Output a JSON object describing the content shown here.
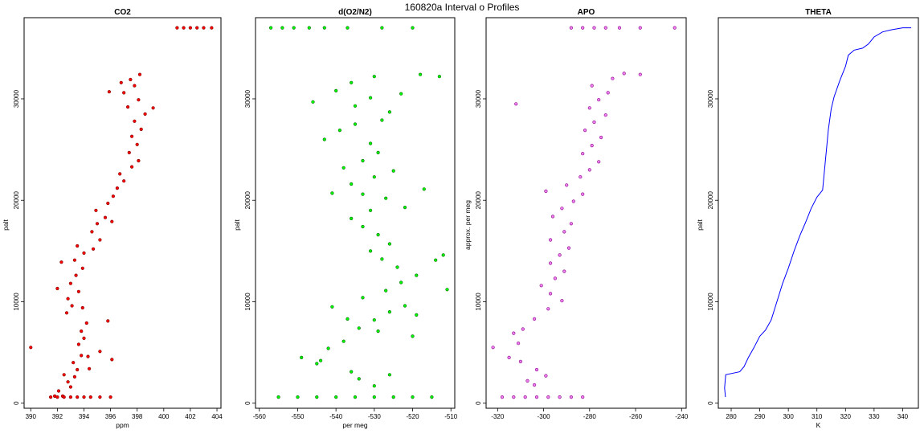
{
  "figure": {
    "title": "160820a   Interval o Profiles"
  },
  "chart_data": [
    {
      "type": "scatter",
      "title": "CO2",
      "xlabel": "ppm",
      "ylabel": "palt",
      "xlim": [
        389.5,
        404.3
      ],
      "ylim": [
        -500,
        38000
      ],
      "xticks": [
        390,
        392,
        394,
        396,
        398,
        400,
        402,
        404
      ],
      "yticks": [
        0,
        10000,
        20000,
        30000
      ],
      "colors": {
        "fill": "#ff0000",
        "edge": "#7a0000"
      },
      "points": [
        [
          390,
          5500
        ],
        [
          391.8,
          700
        ],
        [
          392.1,
          1200
        ],
        [
          392.4,
          700
        ],
        [
          392.8,
          2100
        ],
        [
          393.0,
          1600
        ],
        [
          393.3,
          2600
        ],
        [
          393.5,
          3300
        ],
        [
          393.2,
          4000
        ],
        [
          393.8,
          4700
        ],
        [
          394.3,
          4600
        ],
        [
          393.6,
          5800
        ],
        [
          394.0,
          6400
        ],
        [
          393.8,
          7100
        ],
        [
          394.2,
          7900
        ],
        [
          395.8,
          8100
        ],
        [
          392.7,
          8900
        ],
        [
          393.1,
          9600
        ],
        [
          392.8,
          10300
        ],
        [
          393.6,
          11000
        ],
        [
          393.0,
          11800
        ],
        [
          393.4,
          12600
        ],
        [
          393.9,
          13300
        ],
        [
          393.3,
          14100
        ],
        [
          394.0,
          14800
        ],
        [
          393.5,
          15500
        ],
        [
          394.7,
          15200
        ],
        [
          395.2,
          16100
        ],
        [
          394.6,
          16900
        ],
        [
          395.0,
          17700
        ],
        [
          395.6,
          18300
        ],
        [
          394.9,
          19000
        ],
        [
          395.8,
          19700
        ],
        [
          396.2,
          20400
        ],
        [
          396.5,
          21200
        ],
        [
          397.0,
          21900
        ],
        [
          396.7,
          22600
        ],
        [
          397.6,
          23300
        ],
        [
          398.1,
          23900
        ],
        [
          397.4,
          24700
        ],
        [
          398.0,
          25500
        ],
        [
          397.6,
          26300
        ],
        [
          398.3,
          27000
        ],
        [
          397.8,
          27800
        ],
        [
          398.6,
          28500
        ],
        [
          397.3,
          29200
        ],
        [
          398.1,
          29900
        ],
        [
          397.0,
          30600
        ],
        [
          397.8,
          31300
        ],
        [
          397.5,
          31900
        ],
        [
          398.2,
          32400
        ],
        [
          396.8,
          31600
        ],
        [
          395.9,
          30700
        ],
        [
          399.2,
          29100
        ],
        [
          396.1,
          17900
        ],
        [
          392.3,
          13900
        ],
        [
          392.0,
          11300
        ],
        [
          393.9,
          9400
        ],
        [
          395.2,
          5100
        ],
        [
          396.1,
          4300
        ],
        [
          394.4,
          3400
        ],
        [
          392.5,
          2800
        ],
        [
          391.5,
          600
        ],
        [
          392.0,
          600
        ],
        [
          392.5,
          600
        ],
        [
          393.0,
          600
        ],
        [
          393.5,
          600
        ],
        [
          394.0,
          600
        ],
        [
          394.5,
          600
        ],
        [
          395.2,
          600
        ],
        [
          396.0,
          600
        ],
        [
          401.0,
          37000
        ],
        [
          401.5,
          37000
        ],
        [
          402.0,
          37000
        ],
        [
          402.5,
          37000
        ],
        [
          403.0,
          37000
        ],
        [
          403.6,
          37000
        ]
      ]
    },
    {
      "type": "scatter",
      "title": "d(O2/N2)",
      "xlabel": "per meg",
      "ylabel": "palt",
      "xlim": [
        -561,
        -509
      ],
      "ylim": [
        -500,
        38000
      ],
      "xticks": [
        -560,
        -550,
        -540,
        -530,
        -520,
        -510
      ],
      "yticks": [
        0,
        10000,
        20000,
        30000
      ],
      "colors": {
        "fill": "#00ff00",
        "edge": "#006400"
      },
      "points": [
        [
          -549,
          4500
        ],
        [
          -545,
          3900
        ],
        [
          -542,
          5400
        ],
        [
          -538,
          6100
        ],
        [
          -534,
          7400
        ],
        [
          -530,
          8200
        ],
        [
          -526,
          9000
        ],
        [
          -522,
          9600
        ],
        [
          -519,
          8700
        ],
        [
          -529,
          7100
        ],
        [
          -537,
          8300
        ],
        [
          -541,
          9500
        ],
        [
          -533,
          10400
        ],
        [
          -527,
          11100
        ],
        [
          -523,
          11900
        ],
        [
          -519,
          12600
        ],
        [
          -524,
          13400
        ],
        [
          -528,
          14200
        ],
        [
          -514,
          14100
        ],
        [
          -531,
          15000
        ],
        [
          -526,
          15700
        ],
        [
          -529,
          16600
        ],
        [
          -533,
          17400
        ],
        [
          -536,
          18200
        ],
        [
          -531,
          19000
        ],
        [
          -522,
          19300
        ],
        [
          -527,
          20200
        ],
        [
          -533,
          20600
        ],
        [
          -541,
          20700
        ],
        [
          -536,
          21600
        ],
        [
          -530,
          22300
        ],
        [
          -525,
          22900
        ],
        [
          -538,
          23200
        ],
        [
          -533,
          23900
        ],
        [
          -529,
          24700
        ],
        [
          -531,
          25600
        ],
        [
          -543,
          26000
        ],
        [
          -539,
          26900
        ],
        [
          -535,
          27500
        ],
        [
          -528,
          27900
        ],
        [
          -526,
          28700
        ],
        [
          -535,
          29300
        ],
        [
          -531,
          30100
        ],
        [
          -523,
          30500
        ],
        [
          -540,
          30800
        ],
        [
          -536,
          31600
        ],
        [
          -530,
          32200
        ],
        [
          -518,
          32400
        ],
        [
          -513,
          32200
        ],
        [
          -546,
          29700
        ],
        [
          -517,
          21100
        ],
        [
          -512,
          14600
        ],
        [
          -511,
          11200
        ],
        [
          -520,
          6600
        ],
        [
          -534,
          2400
        ],
        [
          -530,
          1700
        ],
        [
          -526,
          2800
        ],
        [
          -536,
          3100
        ],
        [
          -544,
          4200
        ],
        [
          -555,
          600
        ],
        [
          -550,
          600
        ],
        [
          -545,
          600
        ],
        [
          -540,
          600
        ],
        [
          -535,
          600
        ],
        [
          -530,
          600
        ],
        [
          -525,
          600
        ],
        [
          -520,
          600
        ],
        [
          -515,
          600
        ],
        [
          -557,
          37000
        ],
        [
          -554,
          37000
        ],
        [
          -551,
          37000
        ],
        [
          -547,
          37000
        ],
        [
          -543,
          37000
        ],
        [
          -537,
          37000
        ],
        [
          -528,
          37000
        ],
        [
          -520,
          37000
        ]
      ]
    },
    {
      "type": "scatter",
      "title": "APO",
      "xlabel": "",
      "ylabel": "approx. per meg",
      "xlim": [
        -325,
        -238
      ],
      "ylim": [
        -500,
        38000
      ],
      "xticks": [
        -320,
        -300,
        -280,
        -260,
        -240
      ],
      "yticks": [
        0,
        10000,
        20000,
        30000
      ],
      "colors": {
        "fill": "#ee82ee",
        "edge": "#8b008b"
      },
      "points": [
        [
          -322,
          5500
        ],
        [
          -315,
          4500
        ],
        [
          -311,
          5900
        ],
        [
          -309,
          7300
        ],
        [
          -304,
          8300
        ],
        [
          -298,
          9300
        ],
        [
          -292,
          10100
        ],
        [
          -297,
          10800
        ],
        [
          -301,
          11600
        ],
        [
          -295,
          12300
        ],
        [
          -291,
          13000
        ],
        [
          -297,
          13800
        ],
        [
          -293,
          14600
        ],
        [
          -289,
          15300
        ],
        [
          -297,
          16100
        ],
        [
          -291,
          16900
        ],
        [
          -288,
          17700
        ],
        [
          -296,
          18400
        ],
        [
          -292,
          19200
        ],
        [
          -287,
          19900
        ],
        [
          -283,
          20600
        ],
        [
          -299,
          20900
        ],
        [
          -290,
          21500
        ],
        [
          -284,
          22300
        ],
        [
          -280,
          23000
        ],
        [
          -276,
          23800
        ],
        [
          -283,
          24600
        ],
        [
          -279,
          25400
        ],
        [
          -275,
          26200
        ],
        [
          -282,
          26900
        ],
        [
          -278,
          27700
        ],
        [
          -273,
          28400
        ],
        [
          -280,
          29100
        ],
        [
          -276,
          29900
        ],
        [
          -272,
          30600
        ],
        [
          -279,
          31300
        ],
        [
          -270,
          32000
        ],
        [
          -265,
          32500
        ],
        [
          -258,
          32400
        ],
        [
          -312,
          29500
        ],
        [
          -303,
          3300
        ],
        [
          -299,
          2700
        ],
        [
          -304,
          1800
        ],
        [
          -307,
          2200
        ],
        [
          -310,
          4100
        ],
        [
          -313,
          6900
        ],
        [
          -318,
          600
        ],
        [
          -313,
          600
        ],
        [
          -308,
          600
        ],
        [
          -303,
          600
        ],
        [
          -298,
          600
        ],
        [
          -293,
          600
        ],
        [
          -288,
          600
        ],
        [
          -283,
          600
        ],
        [
          -288,
          37000
        ],
        [
          -283,
          37000
        ],
        [
          -278,
          37000
        ],
        [
          -273,
          37000
        ],
        [
          -267,
          37000
        ],
        [
          -258,
          37000
        ],
        [
          -243,
          37000
        ]
      ]
    },
    {
      "type": "line",
      "title": "THETA",
      "xlabel": "K",
      "ylabel": "palt",
      "xlim": [
        275.5,
        345.5
      ],
      "ylim": [
        -500,
        38000
      ],
      "xticks": [
        280,
        290,
        300,
        310,
        320,
        330,
        340
      ],
      "yticks": [
        0,
        10000,
        20000,
        30000
      ],
      "colors": {
        "line": "#0000ff"
      },
      "points": [
        [
          278.0,
          600
        ],
        [
          277.7,
          1500
        ],
        [
          278.1,
          2800
        ],
        [
          283,
          3100
        ],
        [
          284.5,
          3600
        ],
        [
          286,
          4500
        ],
        [
          288,
          5500
        ],
        [
          290,
          6600
        ],
        [
          292,
          7200
        ],
        [
          294,
          8200
        ],
        [
          296,
          10000
        ],
        [
          298,
          11800
        ],
        [
          300,
          13300
        ],
        [
          302,
          15000
        ],
        [
          304,
          16500
        ],
        [
          306,
          17800
        ],
        [
          308,
          19200
        ],
        [
          310,
          20300
        ],
        [
          312,
          21000
        ],
        [
          313,
          24000
        ],
        [
          314,
          27000
        ],
        [
          315,
          29000
        ],
        [
          316,
          30200
        ],
        [
          318,
          31800
        ],
        [
          320,
          33200
        ],
        [
          321,
          34300
        ],
        [
          323,
          34800
        ],
        [
          326,
          35000
        ],
        [
          328,
          35400
        ],
        [
          330,
          36100
        ],
        [
          333,
          36600
        ],
        [
          336,
          36800
        ],
        [
          340,
          37000
        ],
        [
          343,
          37000
        ]
      ]
    }
  ]
}
